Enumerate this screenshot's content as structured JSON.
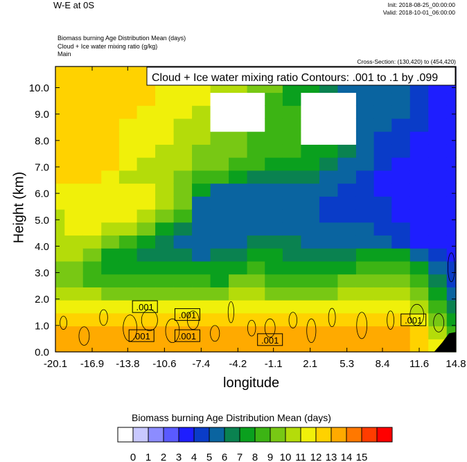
{
  "header": {
    "title": "W-E at 0S",
    "init": "Init: 2018-08-25_00:00:00",
    "valid": "Valid: 2018-10-01_06:00:00",
    "subtitle_lines": [
      "Biomass burning Age Distribution Mean    (days)",
      "Cloud + Ice water mixing ratio    (g/kg)",
      "Main"
    ],
    "cross_section": "Cross-Section: (130,420) to (454,420)"
  },
  "chart_data": {
    "type": "heatmap",
    "title": "W-E at 0S",
    "xlabel": "longitude",
    "ylabel": "Height (km)",
    "xticks": [
      "-20.1",
      "-16.9",
      "-13.8",
      "-10.6",
      "-7.4",
      "-4.2",
      "-1.1",
      "2.1",
      "5.3",
      "8.4",
      "11.6",
      "14.8"
    ],
    "yticks": [
      "0.0",
      "1.0",
      "2.0",
      "3.0",
      "4.0",
      "5.0",
      "6.0",
      "7.0",
      "8.0",
      "9.0",
      "10.0"
    ],
    "xlim": [
      -20.1,
      14.8
    ],
    "ylim": [
      0.0,
      10.8
    ],
    "contour_box": "Cloud + Ice water mixing ratio Contours: .001 to .1 by .099",
    "contour_labels": [
      ".001",
      ".001",
      ".001",
      ".001",
      ".001",
      ".001"
    ],
    "colorbar": {
      "title": "Biomass burning Age Distribution Mean  (days)",
      "labels": [
        "0",
        "1",
        "2",
        "3",
        "4",
        "5",
        "6",
        "7",
        "8",
        "9",
        "10",
        "11",
        "12",
        "13",
        "14",
        "15"
      ],
      "colors": [
        "#ffffff",
        "#c8c8ff",
        "#8c8cff",
        "#5a5aff",
        "#1e1eff",
        "#0a3cc8",
        "#0a64a0",
        "#0a8250",
        "#0aa01e",
        "#3cb414",
        "#78c814",
        "#b4dc0a",
        "#f0f00a",
        "#ffd200",
        "#ffaa00",
        "#ff7800",
        "#ff3c00",
        "#ff0000"
      ]
    },
    "columns": [
      {
        "x": -20.1,
        "c": [
          14,
          14,
          13,
          12,
          11,
          10,
          10,
          11,
          11,
          11,
          11,
          12,
          12,
          13,
          13,
          13,
          13,
          13,
          13,
          13,
          13,
          13
        ]
      },
      {
        "x": -18.5,
        "c": [
          14,
          14,
          13,
          12,
          11,
          10,
          10,
          11,
          11,
          12,
          12,
          12,
          12,
          13,
          13,
          13,
          13,
          13,
          13,
          13,
          13,
          13
        ]
      },
      {
        "x": -16.9,
        "c": [
          14,
          14,
          13,
          12,
          11,
          9,
          9,
          10,
          11,
          12,
          12,
          12,
          12,
          13,
          13,
          13,
          13,
          13,
          13,
          13,
          13,
          13
        ]
      },
      {
        "x": -15.3,
        "c": [
          14,
          14,
          13,
          12,
          10,
          9,
          8,
          8,
          10,
          11,
          12,
          12,
          12,
          12,
          13,
          13,
          13,
          13,
          13,
          13,
          13,
          13
        ]
      },
      {
        "x": -13.8,
        "c": [
          14,
          14,
          13,
          12,
          10,
          9,
          8,
          8,
          9,
          11,
          12,
          12,
          12,
          11,
          12,
          12,
          12,
          12,
          13,
          13,
          13,
          13
        ]
      },
      {
        "x": -12.2,
        "c": [
          14,
          14,
          13,
          12,
          10,
          9,
          8,
          7,
          8,
          10,
          11,
          12,
          12,
          11,
          11,
          12,
          12,
          12,
          12,
          13,
          13,
          13
        ]
      },
      {
        "x": -10.6,
        "c": [
          14,
          14,
          13,
          12,
          10,
          9,
          8,
          7,
          7,
          8,
          10,
          11,
          11,
          11,
          11,
          11,
          12,
          12,
          12,
          12,
          12,
          12
        ]
      },
      {
        "x": -9.0,
        "c": [
          14,
          14,
          13,
          12,
          10,
          9,
          8,
          7,
          6,
          7,
          9,
          10,
          10,
          10,
          11,
          11,
          11,
          11,
          12,
          12,
          12,
          12
        ]
      },
      {
        "x": -7.4,
        "c": [
          14,
          14,
          13,
          12,
          10,
          9,
          8,
          6,
          6,
          6,
          6,
          6,
          8,
          9,
          10,
          10,
          11,
          11,
          11,
          12,
          12,
          12
        ]
      },
      {
        "x": -5.8,
        "c": [
          14,
          14,
          13,
          12,
          10,
          8,
          8,
          7,
          6,
          6,
          6,
          6,
          6,
          9,
          10,
          10,
          10,
          0,
          0,
          0,
          11,
          11
        ]
      },
      {
        "x": -4.2,
        "c": [
          14,
          14,
          13,
          12,
          11,
          10,
          8,
          7,
          6,
          6,
          6,
          6,
          6,
          8,
          9,
          10,
          10,
          0,
          0,
          0,
          11,
          11
        ]
      },
      {
        "x": -2.6,
        "c": [
          14,
          14,
          13,
          12,
          11,
          10,
          9,
          8,
          7,
          6,
          6,
          6,
          6,
          7,
          9,
          9,
          9,
          0,
          0,
          0,
          10,
          10
        ]
      },
      {
        "x": -1.1,
        "c": [
          14,
          14,
          13,
          12,
          10,
          9,
          8,
          8,
          7,
          6,
          6,
          6,
          6,
          7,
          8,
          9,
          9,
          9,
          9,
          9,
          10,
          10
        ]
      },
      {
        "x": 0.5,
        "c": [
          14,
          14,
          13,
          12,
          10,
          9,
          8,
          7,
          7,
          6,
          6,
          6,
          6,
          7,
          8,
          9,
          9,
          9,
          9,
          8,
          8,
          8
        ]
      },
      {
        "x": 2.1,
        "c": [
          14,
          14,
          13,
          12,
          10,
          9,
          8,
          7,
          6,
          6,
          6,
          6,
          6,
          7,
          8,
          8,
          0,
          0,
          0,
          0,
          8,
          8
        ]
      },
      {
        "x": 3.7,
        "c": [
          14,
          14,
          13,
          12,
          10,
          9,
          8,
          7,
          6,
          6,
          5,
          5,
          6,
          6,
          7,
          8,
          0,
          0,
          0,
          0,
          7,
          7
        ]
      },
      {
        "x": 5.3,
        "c": [
          14,
          14,
          13,
          12,
          11,
          10,
          8,
          7,
          6,
          6,
          5,
          5,
          5,
          6,
          6,
          7,
          0,
          0,
          0,
          0,
          6,
          6
        ]
      },
      {
        "x": 6.9,
        "c": [
          14,
          14,
          13,
          12,
          11,
          10,
          9,
          8,
          6,
          6,
          5,
          5,
          5,
          5,
          6,
          6,
          6,
          6,
          6,
          6,
          6,
          6
        ]
      },
      {
        "x": 8.4,
        "c": [
          14,
          14,
          13,
          12,
          11,
          10,
          9,
          8,
          6,
          5,
          5,
          5,
          4,
          4,
          5,
          5,
          5,
          6,
          6,
          6,
          6,
          6
        ]
      },
      {
        "x": 10.0,
        "c": [
          14,
          14,
          13,
          12,
          11,
          10,
          9,
          8,
          5,
          5,
          4,
          4,
          4,
          4,
          4,
          5,
          5,
          5,
          6,
          6,
          6,
          6
        ]
      },
      {
        "x": 11.6,
        "c": [
          13,
          13,
          12,
          11,
          10,
          9,
          8,
          6,
          4,
          4,
          4,
          4,
          4,
          4,
          4,
          4,
          4,
          5,
          5,
          5,
          5,
          5
        ]
      },
      {
        "x": 13.2,
        "c": [
          12,
          11,
          10,
          9,
          8,
          7,
          6,
          5,
          4,
          4,
          4,
          4,
          4,
          4,
          4,
          4,
          4,
          4,
          4,
          4,
          4,
          4
        ]
      },
      {
        "x": 14.8,
        "c": [
          10,
          9,
          8,
          7,
          6,
          5,
          5,
          4,
          4,
          4,
          4,
          4,
          4,
          4,
          4,
          4,
          4,
          4,
          4,
          4,
          4,
          4
        ]
      }
    ]
  }
}
